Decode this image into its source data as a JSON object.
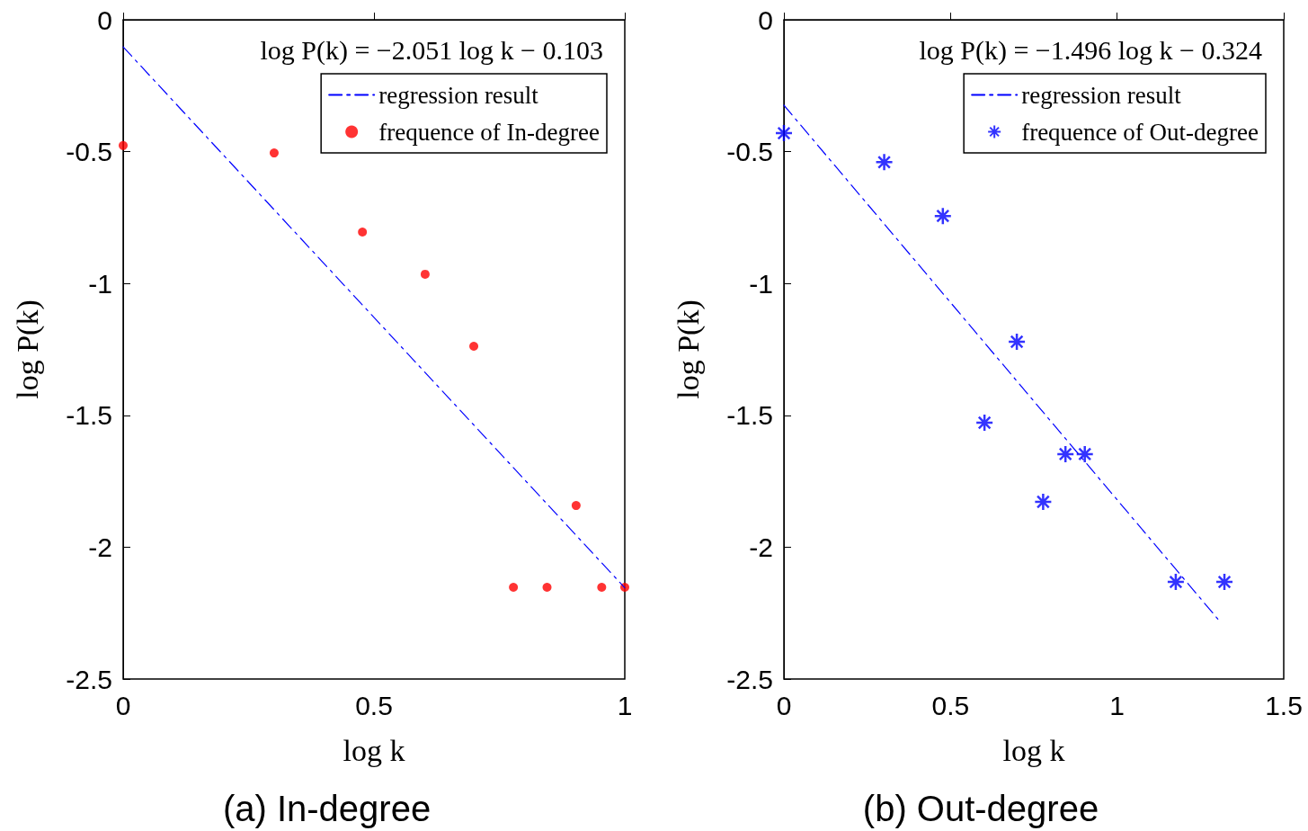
{
  "chart_data": [
    {
      "type": "scatter",
      "title": "(a) In-degree",
      "xlabel": "log k",
      "ylabel": "log P(k)",
      "xlim": [
        0,
        1
      ],
      "xticks": [
        0,
        0.5,
        1
      ],
      "ylim": [
        -2.5,
        0
      ],
      "yticks": [
        0,
        -0.5,
        -1,
        -1.5,
        -2,
        -2.5
      ],
      "legend": "top right",
      "annotations": [
        "log P(k) = −2.051 log k − 0.103"
      ],
      "series": [
        {
          "name": "regression result",
          "type": "line",
          "line_style": "dashed",
          "marker": "none",
          "color": "#0000ff",
          "x": [
            0,
            1
          ],
          "values": [
            -0.103,
            -2.154
          ]
        },
        {
          "name": "frequence of In-degree",
          "marker": "circle",
          "color": "#ff0000",
          "x": [
            0,
            0.301,
            0.477,
            0.602,
            0.699,
            0.903,
            0.778,
            0.845,
            0.954,
            1
          ],
          "values": [
            -0.477,
            -0.505,
            -0.805,
            -0.965,
            -1.238,
            -1.842,
            -2.152,
            -2.152,
            -2.152,
            -2.152
          ]
        }
      ]
    },
    {
      "type": "scatter",
      "title": "(b) Out-degree",
      "xlabel": "log k",
      "ylabel": "log P(k)",
      "xlim": [
        0,
        1.5
      ],
      "xticks": [
        0,
        0.5,
        1,
        1.5
      ],
      "ylim": [
        -2.5,
        0
      ],
      "yticks": [
        0,
        -0.5,
        -1,
        -1.5,
        -2,
        -2.5
      ],
      "legend": "top right",
      "annotations": [
        "log P(k) = −1.496 log k − 0.324"
      ],
      "series": [
        {
          "name": "regression result",
          "type": "line",
          "line_style": "dashed",
          "marker": "none",
          "color": "#0000ff",
          "x": [
            0,
            1.31
          ],
          "values": [
            -0.324,
            -2.284
          ]
        },
        {
          "name": "frequence of Out-degree",
          "marker": "cross",
          "color": "#0000ff",
          "x": [
            0,
            0.301,
            0.477,
            0.699,
            0.602,
            0.778,
            0.845,
            0.903,
            1.176,
            1.322
          ],
          "values": [
            -0.43,
            -0.54,
            -0.744,
            -1.221,
            -1.528,
            -1.828,
            -1.647,
            -1.647,
            -2.132,
            -2.132
          ]
        }
      ]
    }
  ]
}
